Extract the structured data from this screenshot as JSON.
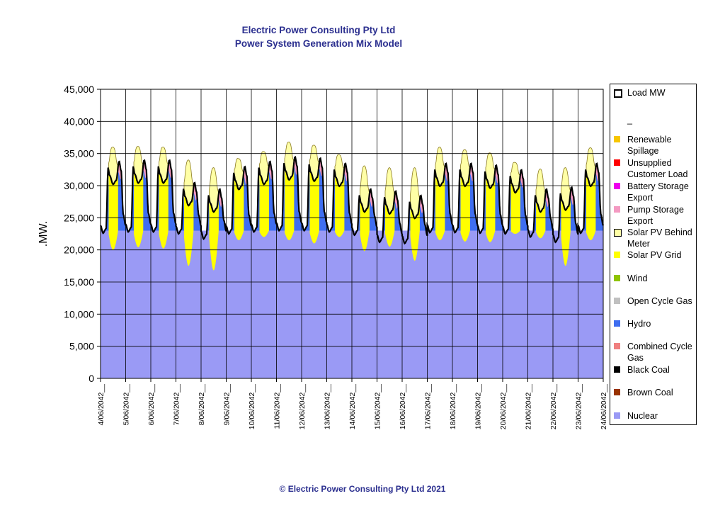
{
  "header": {
    "title_line1": "Electric Power Consulting Pty Ltd",
    "title_line2": "Power System Generation Mix Model"
  },
  "footer": {
    "copyright": "© Electric Power Consulting Pty Ltd 2021"
  },
  "chart_data": {
    "type": "area",
    "ylabel": ".MW.",
    "xlabel": "",
    "ylim": [
      0,
      45000
    ],
    "yticks": [
      "0",
      "5,000",
      "10,000",
      "15,000",
      "20,000",
      "25,000",
      "30,000",
      "35,000",
      "40,000",
      "45,000"
    ],
    "x_tick_labels": [
      "4/06/2042__",
      "5/06/2042__",
      "6/06/2042__",
      "7/06/2042__",
      "8/06/2042__",
      "9/06/2042__",
      "10/06/2042__",
      "11/06/2042__",
      "12/06/2042__",
      "13/06/2042__",
      "14/06/2042__",
      "15/06/2042__",
      "16/06/2042__",
      "17/06/2042__",
      "18/06/2042__",
      "19/06/2042__",
      "20/06/2042__",
      "21/06/2042__",
      "22/06/2042__",
      "23/06/2042__",
      "24/06/2042__"
    ],
    "grid": true,
    "legend_position": "right",
    "series_stack_order": [
      "Nuclear",
      "Hydro",
      "Solar PV Grid",
      "Solar PV Behind Meter",
      "Pump Storage Export"
    ],
    "nuclear_mw": 23000,
    "series": [
      {
        "name": "Load MW",
        "color": "#000000",
        "style": "line"
      },
      {
        "name": "_",
        "color": "#ffffff",
        "style": "blank"
      },
      {
        "name": "Renewable Spillage",
        "color": "#f7c600"
      },
      {
        "name": "Unsupplied Customer Load",
        "color": "#ff0000"
      },
      {
        "name": "Battery Storage Export",
        "color": "#ee00ee"
      },
      {
        "name": "Pump Storage Export",
        "color": "#f49ac2"
      },
      {
        "name": "Solar PV Behind Meter",
        "color": "#ffffa6",
        "outline": "#000000"
      },
      {
        "name": "Solar PV Grid",
        "color": "#ffff00"
      },
      {
        "name": "Wind",
        "color": "#8fc400"
      },
      {
        "name": "Open Cycle Gas",
        "color": "#c0c0c0"
      },
      {
        "name": "Hydro",
        "color": "#3f6ef0"
      },
      {
        "name": "Combined Cycle Gas",
        "color": "#f08080"
      },
      {
        "name": "Black Coal",
        "color": "#000000"
      },
      {
        "name": "Brown Coal",
        "color": "#993300"
      },
      {
        "name": "Nuclear",
        "color": "#9a9af5"
      }
    ],
    "daily": [
      {
        "date": "4/06/2042",
        "evening_peak_mw": 33800,
        "day_top_mw": 37200,
        "overnight_min_mw": 22600,
        "solar_dip_mw": 20000
      },
      {
        "date": "5/06/2042",
        "evening_peak_mw": 34000,
        "day_top_mw": 37300,
        "overnight_min_mw": 22800,
        "solar_dip_mw": 20400
      },
      {
        "date": "6/06/2042",
        "evening_peak_mw": 34000,
        "day_top_mw": 37200,
        "overnight_min_mw": 22800,
        "solar_dip_mw": 20200
      },
      {
        "date": "7/06/2042",
        "evening_peak_mw": 30500,
        "day_top_mw": 35200,
        "overnight_min_mw": 22500,
        "solar_dip_mw": 17500
      },
      {
        "date": "8/06/2042",
        "evening_peak_mw": 29500,
        "day_top_mw": 34000,
        "overnight_min_mw": 21700,
        "solar_dip_mw": 16800
      },
      {
        "date": "9/06/2042",
        "evening_peak_mw": 33000,
        "day_top_mw": 35400,
        "overnight_min_mw": 22500,
        "solar_dip_mw": 21500
      },
      {
        "date": "10/06/2042",
        "evening_peak_mw": 33800,
        "day_top_mw": 36500,
        "overnight_min_mw": 22800,
        "solar_dip_mw": 22000
      },
      {
        "date": "11/06/2042",
        "evening_peak_mw": 34500,
        "day_top_mw": 38000,
        "overnight_min_mw": 23000,
        "solar_dip_mw": 21500
      },
      {
        "date": "12/06/2042",
        "evening_peak_mw": 34300,
        "day_top_mw": 37500,
        "overnight_min_mw": 23000,
        "solar_dip_mw": 21000
      },
      {
        "date": "13/06/2042",
        "evening_peak_mw": 33500,
        "day_top_mw": 36000,
        "overnight_min_mw": 22800,
        "solar_dip_mw": 22000
      },
      {
        "date": "14/06/2042",
        "evening_peak_mw": 29500,
        "day_top_mw": 34300,
        "overnight_min_mw": 22300,
        "solar_dip_mw": 19800
      },
      {
        "date": "15/06/2042",
        "evening_peak_mw": 29200,
        "day_top_mw": 34000,
        "overnight_min_mw": 21200,
        "solar_dip_mw": 20500
      },
      {
        "date": "16/06/2042",
        "evening_peak_mw": 28500,
        "day_top_mw": 34000,
        "overnight_min_mw": 21000,
        "solar_dip_mw": 18300
      },
      {
        "date": "17/06/2042",
        "evening_peak_mw": 33500,
        "day_top_mw": 37200,
        "overnight_min_mw": 22700,
        "solar_dip_mw": 21500
      },
      {
        "date": "18/06/2042",
        "evening_peak_mw": 33500,
        "day_top_mw": 36800,
        "overnight_min_mw": 22700,
        "solar_dip_mw": 21300
      },
      {
        "date": "19/06/2042",
        "evening_peak_mw": 33200,
        "day_top_mw": 36300,
        "overnight_min_mw": 22600,
        "solar_dip_mw": 21200
      },
      {
        "date": "20/06/2042",
        "evening_peak_mw": 32500,
        "day_top_mw": 34800,
        "overnight_min_mw": 22500,
        "solar_dip_mw": 22500
      },
      {
        "date": "21/06/2042",
        "evening_peak_mw": 29500,
        "day_top_mw": 33800,
        "overnight_min_mw": 22000,
        "solar_dip_mw": 21800
      },
      {
        "date": "22/06/2042",
        "evening_peak_mw": 29800,
        "day_top_mw": 34000,
        "overnight_min_mw": 21200,
        "solar_dip_mw": 17500
      },
      {
        "date": "23/06/2042",
        "evening_peak_mw": 33500,
        "day_top_mw": 37100,
        "overnight_min_mw": 22600,
        "solar_dip_mw": 21500
      }
    ]
  }
}
